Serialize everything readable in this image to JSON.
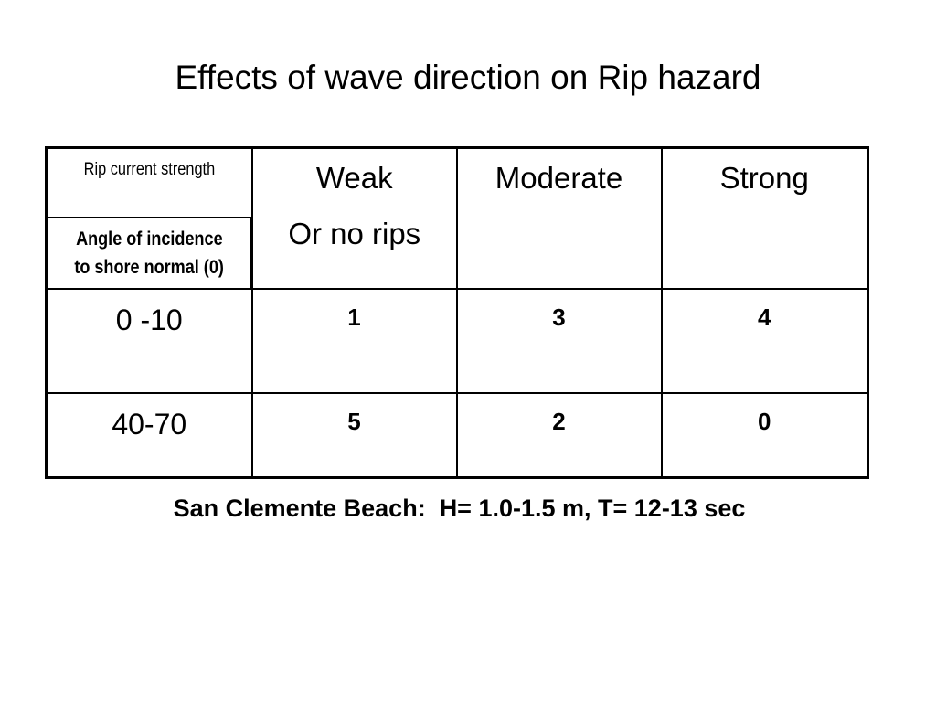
{
  "title": "Effects of wave direction on Rip hazard",
  "table": {
    "corner_top": "Rip current strength",
    "corner_bottom_line1": "Angle of incidence",
    "corner_bottom_line2": "to shore normal (0)",
    "columns": [
      {
        "line1": "Weak",
        "line2": "Or no rips"
      },
      {
        "line1": "Moderate",
        "line2": ""
      },
      {
        "line1": "Strong",
        "line2": ""
      }
    ],
    "rows": [
      {
        "label": "0 -10",
        "values": [
          "1",
          "3",
          "4"
        ]
      },
      {
        "label": "40-70",
        "values": [
          "5",
          "2",
          "0"
        ]
      }
    ]
  },
  "footer": "San Clemente Beach:  H= 1.0-1.5 m, T= 12-13 sec"
}
